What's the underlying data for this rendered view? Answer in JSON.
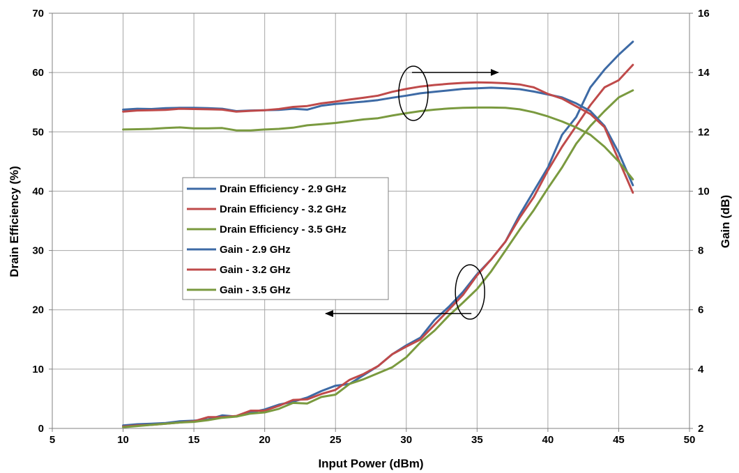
{
  "chart_data": {
    "type": "line",
    "xlabel": "Input Power (dBm)",
    "ylabel_left": "Drain Efficiency (%)",
    "ylabel_right": "Gain (dB)",
    "xlim": [
      5,
      50
    ],
    "ylim_left": [
      0,
      70
    ],
    "ylim_right": [
      2,
      16
    ],
    "xticks": [
      5,
      10,
      15,
      20,
      25,
      30,
      35,
      40,
      45,
      50
    ],
    "yticks_left": [
      0,
      10,
      20,
      30,
      40,
      50,
      60,
      70
    ],
    "yticks_right": [
      2,
      4,
      6,
      8,
      10,
      12,
      14,
      16
    ],
    "grid": true,
    "legend_position": "center-left",
    "x": [
      10,
      11,
      12,
      13,
      14,
      15,
      16,
      17,
      18,
      19,
      20,
      21,
      22,
      23,
      24,
      25,
      26,
      27,
      28,
      29,
      30,
      31,
      32,
      33,
      34,
      35,
      36,
      37,
      38,
      39,
      40,
      41,
      42,
      43,
      44,
      45,
      46
    ],
    "series": [
      {
        "name": "Drain Efficiency - 2.9 GHz",
        "axis": "left",
        "color": "#3d6aa5",
        "values": [
          0.5,
          0.7,
          0.8,
          0.9,
          1.2,
          1.3,
          1.5,
          2.2,
          2.0,
          2.7,
          3.2,
          4.0,
          4.5,
          5.2,
          6.3,
          7.2,
          7.5,
          9.0,
          10.5,
          12.5,
          14.0,
          15.3,
          18.3,
          20.5,
          23.0,
          26.0,
          28.5,
          31.5,
          36.0,
          40.0,
          44.0,
          49.5,
          52.5,
          57.5,
          60.5,
          63.0,
          65.2
        ]
      },
      {
        "name": "Drain Efficiency - 3.2 GHz",
        "axis": "left",
        "color": "#bf4a4a",
        "values": [
          0.3,
          0.5,
          0.6,
          0.8,
          1.0,
          1.2,
          1.9,
          1.9,
          2.1,
          3.0,
          3.0,
          3.8,
          4.8,
          4.9,
          5.8,
          6.5,
          8.2,
          9.2,
          10.5,
          12.5,
          13.8,
          15.0,
          17.5,
          20.0,
          22.5,
          25.8,
          28.5,
          31.5,
          35.5,
          39.0,
          43.5,
          47.5,
          51.0,
          54.5,
          57.5,
          58.7,
          61.3
        ]
      },
      {
        "name": "Drain Efficiency - 3.5 GHz",
        "axis": "left",
        "color": "#7a9a3f",
        "values": [
          0.2,
          0.4,
          0.6,
          0.8,
          1.0,
          1.1,
          1.4,
          1.8,
          2.0,
          2.5,
          2.7,
          3.3,
          4.3,
          4.2,
          5.3,
          5.7,
          7.5,
          8.3,
          9.3,
          10.3,
          12.0,
          14.5,
          16.5,
          19.0,
          21.2,
          23.5,
          26.5,
          30.0,
          33.5,
          36.8,
          40.5,
          44.0,
          48.0,
          51.0,
          53.5,
          55.8,
          57.0
        ]
      },
      {
        "name": "Gain - 2.9 GHz",
        "axis": "right",
        "color": "#3d6aa5",
        "values": [
          12.75,
          12.78,
          12.77,
          12.8,
          12.81,
          12.81,
          12.8,
          12.78,
          12.7,
          12.72,
          12.73,
          12.74,
          12.78,
          12.75,
          12.88,
          12.94,
          12.98,
          13.02,
          13.07,
          13.15,
          13.22,
          13.3,
          13.35,
          13.4,
          13.45,
          13.47,
          13.49,
          13.47,
          13.44,
          13.36,
          13.26,
          13.16,
          12.96,
          12.7,
          12.2,
          11.3,
          10.2
        ]
      },
      {
        "name": "Gain - 3.2 GHz",
        "axis": "right",
        "color": "#bf4a4a",
        "values": [
          12.68,
          12.72,
          12.73,
          12.74,
          12.78,
          12.77,
          12.76,
          12.75,
          12.68,
          12.71,
          12.73,
          12.77,
          12.84,
          12.87,
          12.96,
          13.02,
          13.09,
          13.15,
          13.22,
          13.35,
          13.45,
          13.53,
          13.58,
          13.62,
          13.65,
          13.67,
          13.66,
          13.64,
          13.6,
          13.5,
          13.28,
          13.12,
          12.86,
          12.6,
          12.16,
          11.05,
          9.95
        ]
      },
      {
        "name": "Gain - 3.5 GHz",
        "axis": "right",
        "color": "#7a9a3f",
        "values": [
          12.08,
          12.09,
          12.1,
          12.13,
          12.15,
          12.12,
          12.12,
          12.13,
          12.05,
          12.05,
          12.08,
          12.1,
          12.14,
          12.22,
          12.26,
          12.3,
          12.36,
          12.42,
          12.46,
          12.55,
          12.63,
          12.7,
          12.75,
          12.79,
          12.81,
          12.82,
          12.82,
          12.81,
          12.76,
          12.66,
          12.52,
          12.35,
          12.15,
          11.9,
          11.5,
          11.0,
          10.4
        ]
      }
    ],
    "annotations": [
      {
        "type": "ellipse",
        "x": 30.5,
        "y_right": 13.3,
        "arrow_to": "right",
        "arrow_end_x": 36.5
      },
      {
        "type": "ellipse",
        "x": 34.5,
        "y_left": 23.0,
        "arrow_to": "left",
        "arrow_end_x": 24.3
      }
    ]
  }
}
